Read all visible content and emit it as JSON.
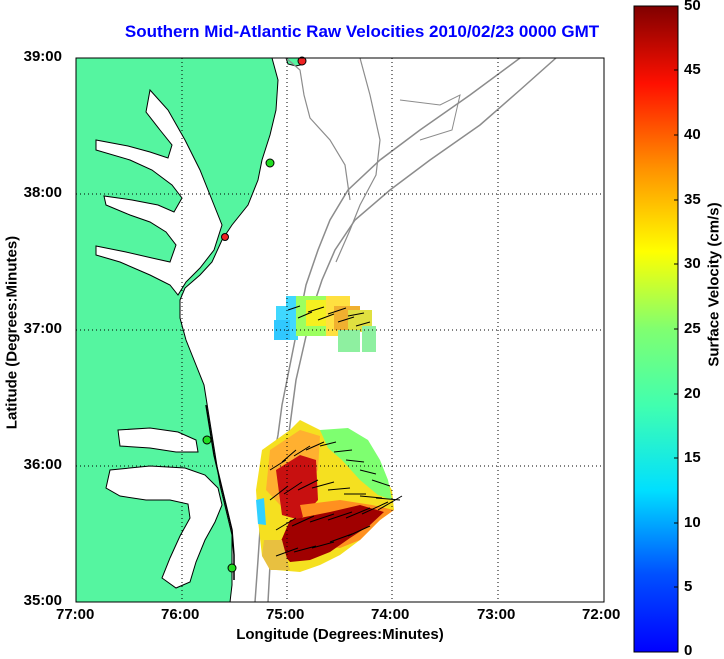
{
  "title": "Southern Mid-Atlantic Raw Velocities 2010/02/23 0000 GMT",
  "axes": {
    "xlabel": "Longitude (Degrees:Minutes)",
    "ylabel": "Latitude (Degrees:Minutes)",
    "x_ticks": [
      "77:00",
      "76:00",
      "75:00",
      "74:00",
      "73:00",
      "72:00"
    ],
    "y_ticks": [
      "39:00",
      "38:00",
      "37:00",
      "36:00",
      "35:00"
    ],
    "grid": "dotted"
  },
  "colorbar": {
    "label": "Surface Velocity (cm/s)",
    "ticks": [
      "50",
      "45",
      "40",
      "35",
      "30",
      "25",
      "20",
      "15",
      "10",
      "5",
      "0"
    ],
    "range": [
      0,
      50
    ],
    "colormap": "jet"
  },
  "colors": {
    "land": "#55f5a0",
    "coast": "#000000",
    "bathymetry": "#8c8c8c",
    "title": "#0000ff",
    "station_green": "#22dd22",
    "station_red": "#ee2222"
  }
}
